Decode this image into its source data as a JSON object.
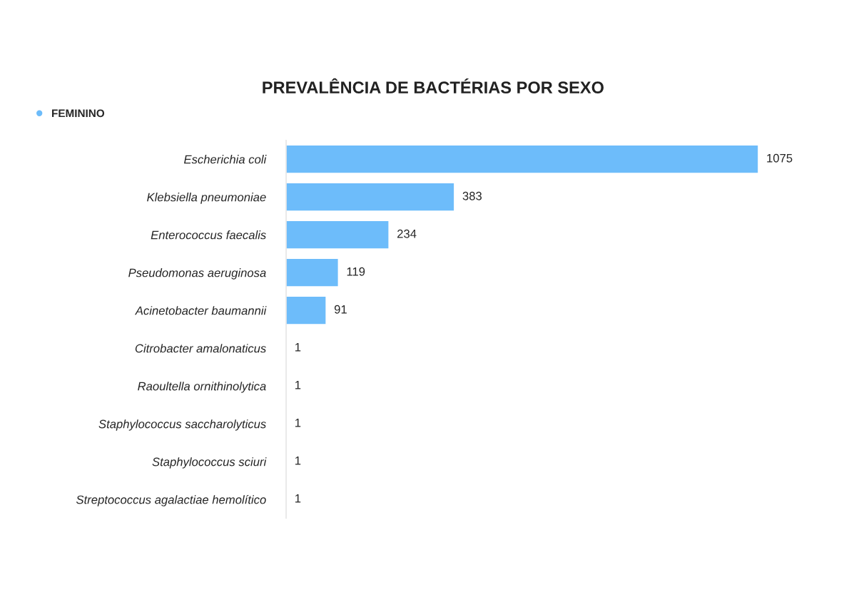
{
  "chart_data": {
    "type": "bar",
    "orientation": "horizontal",
    "title": "PREVALÊNCIA DE BACTÉRIAS POR SEXO",
    "categories": [
      "Escherichia coli",
      "Klebsiella pneumoniae",
      "Enterococcus faecalis",
      "Pseudomonas aeruginosa",
      "Acinetobacter baumannii",
      "Citrobacter amalonaticus",
      "Raoultella ornithinolytica",
      "Staphylococcus saccharolyticus",
      "Staphylococcus sciuri",
      "Streptococcus agalactiae hemolítico"
    ],
    "series": [
      {
        "name": "FEMININO",
        "color": "#6dbcfa",
        "values": [
          1075,
          383,
          234,
          119,
          91,
          1,
          1,
          1,
          1,
          1
        ]
      }
    ],
    "tick_labels": "y",
    "data_labels": true,
    "legend": "top left",
    "grid": false
  }
}
